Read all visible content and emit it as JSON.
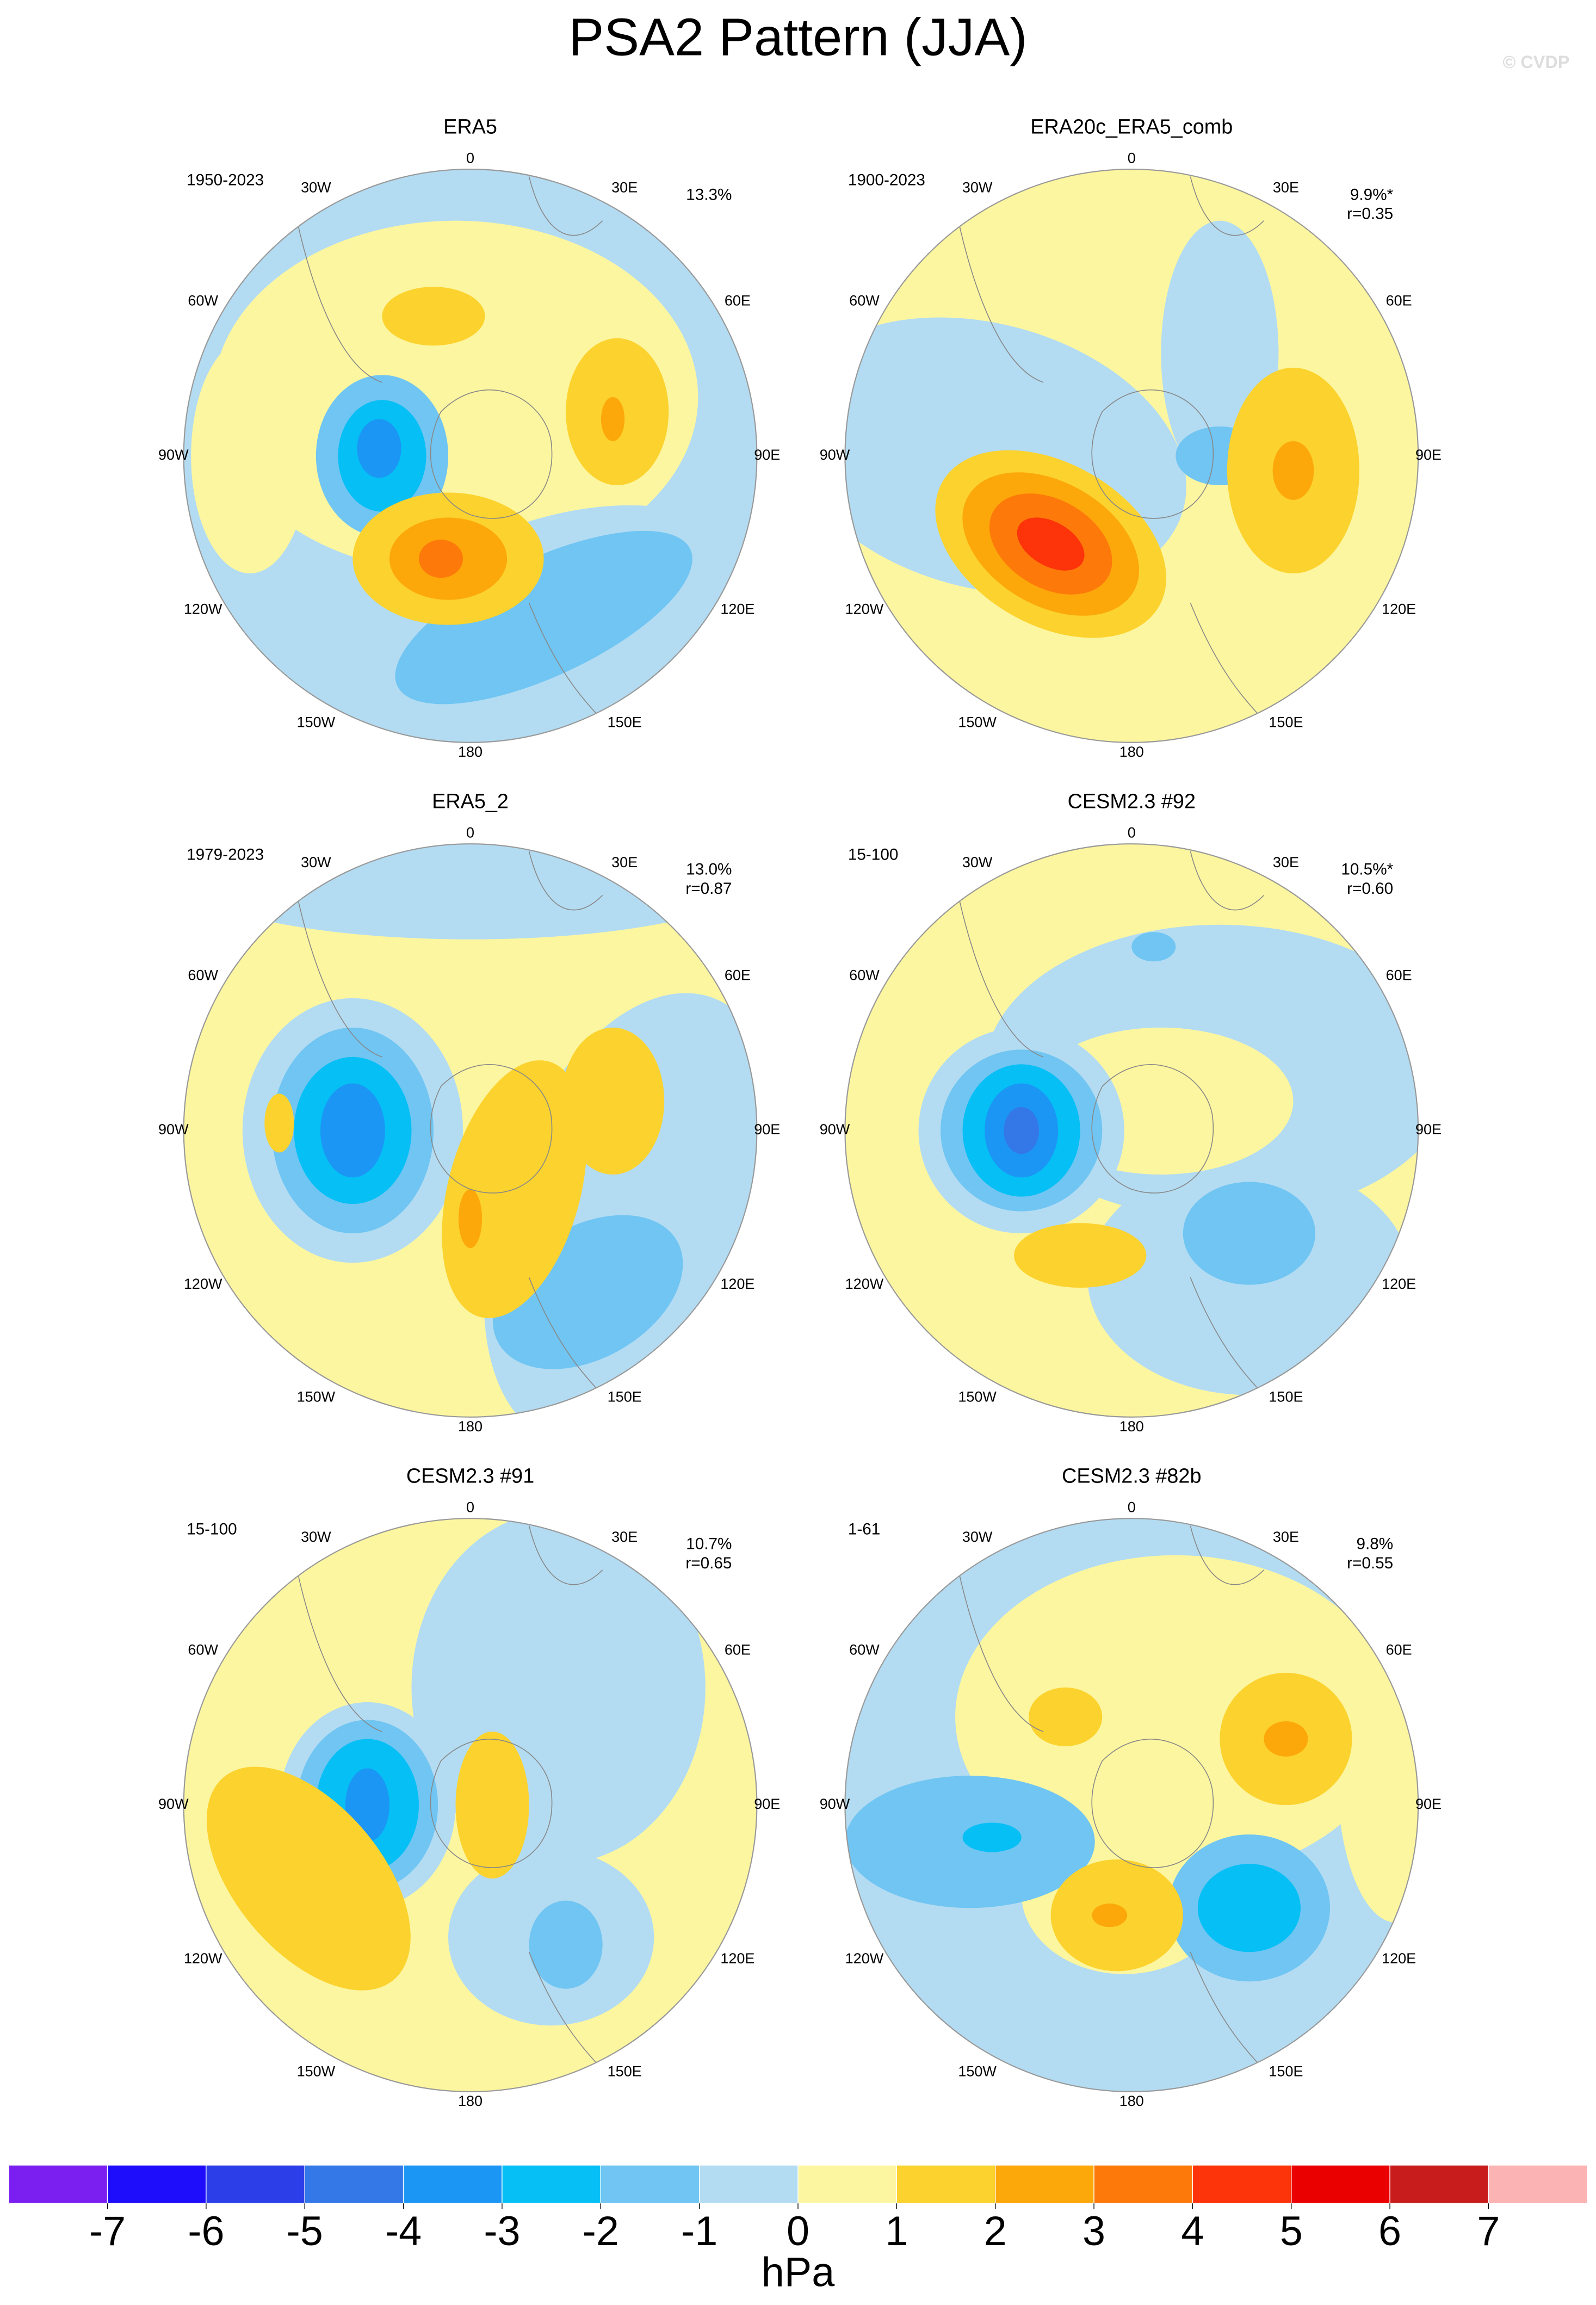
{
  "title": "PSA2 Pattern (JJA)",
  "watermark": "© CVDP",
  "longitude_labels": [
    "0",
    "30E",
    "60E",
    "90E",
    "120E",
    "150E",
    "180",
    "150W",
    "120W",
    "90W",
    "60W",
    "30W"
  ],
  "panels": [
    {
      "title": "ERA5",
      "period": "1950-2023",
      "variance": "13.3%"
    },
    {
      "title": "ERA20c_ERA5_comb",
      "period": "1900-2023",
      "variance": "9.9%*",
      "correlation": "r=0.35"
    },
    {
      "title": "ERA5_2",
      "period": "1979-2023",
      "variance": "13.0%",
      "correlation": "r=0.87"
    },
    {
      "title": "CESM2.3 #92",
      "period": "15-100",
      "variance": "10.5%*",
      "correlation": "r=0.60"
    },
    {
      "title": "CESM2.3 #91",
      "period": "15-100",
      "variance": "10.7%",
      "correlation": "r=0.65"
    },
    {
      "title": "CESM2.3 #82b",
      "period": "1-61",
      "variance": "9.8%",
      "correlation": "r=0.55"
    }
  ],
  "colorbar": {
    "colors": [
      "#7b1ff0",
      "#1e0dfa",
      "#2c3ee8",
      "#3478e8",
      "#1b96f5",
      "#05bff5",
      "#70c5f2",
      "#b3dcf2",
      "#fdf6a0",
      "#fcd22e",
      "#fca80a",
      "#fd7a0a",
      "#fd330a",
      "#eb0000",
      "#c81c1c",
      "#fcb3b3"
    ],
    "ticks": [
      -7,
      -6,
      -5,
      -4,
      -3,
      -2,
      -1,
      0,
      1,
      2,
      3,
      4,
      5,
      6,
      7
    ],
    "unit": "hPa"
  }
}
